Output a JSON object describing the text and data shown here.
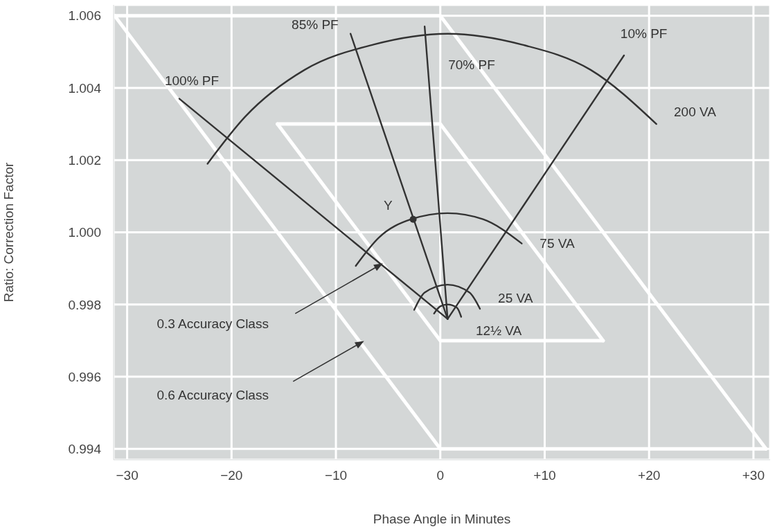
{
  "chart_data": {
    "type": "line",
    "xlabel": "Phase Angle in Minutes",
    "ylabel": "Ratio: Correction Factor",
    "xlim": [
      -31.3,
      31.6
    ],
    "ylim": [
      0.9937,
      1.0063
    ],
    "xticks": [
      {
        "value": -30,
        "label": "−30"
      },
      {
        "value": -20,
        "label": "−20"
      },
      {
        "value": -10,
        "label": "−10"
      },
      0,
      {
        "value": 10,
        "label": "+10"
      },
      {
        "value": 20,
        "label": "+20"
      },
      {
        "value": 30,
        "label": "+30"
      }
    ],
    "yticks": [
      0.994,
      0.996,
      0.998,
      {
        "value": 1,
        "label": "1.000"
      },
      1.002,
      1.004,
      1.006
    ],
    "grid": true,
    "series": [
      {
        "color": "#ffffff",
        "x": [
          -31.2,
          0,
          31.2
        ],
        "values": [
          1.006,
          1.006,
          0.994
        ]
      },
      {
        "color": "#ffffff",
        "x": [
          -31.2,
          0,
          31.2
        ],
        "values": [
          1.006,
          0.994,
          0.994
        ]
      },
      {
        "color": "#ffffff",
        "x": [
          -15.6,
          0,
          15.6
        ],
        "values": [
          1.003,
          1.003,
          0.997
        ]
      },
      {
        "color": "#ffffff",
        "x": [
          -15.6,
          0,
          15.6
        ],
        "values": [
          1.003,
          0.997,
          0.997
        ]
      },
      {
        "color": "#333333",
        "x": [
          -25,
          0.7
        ],
        "values": [
          1.0037,
          0.9976
        ]
      },
      {
        "color": "#333333",
        "x": [
          -8.6,
          0.7
        ],
        "values": [
          1.0055,
          0.9976
        ]
      },
      {
        "color": "#333333",
        "x": [
          -1.5,
          0.7
        ],
        "values": [
          1.0057,
          0.9976
        ]
      },
      {
        "color": "#333333",
        "x": [
          17.6,
          0.7
        ],
        "values": [
          1.0049,
          0.9976
        ]
      },
      {
        "color": "#333333",
        "x": [
          -22.3,
          -18.7,
          -13.0,
          -6.4,
          0.7,
          7.8,
          14.4,
          20.7
        ],
        "values": [
          1.0019,
          1.0032,
          1.0045,
          1.0052,
          1.0055,
          1.0052,
          1.0045,
          1.003
        ]
      },
      {
        "color": "#333333",
        "x": [
          -8.1,
          -5.9,
          -2.8,
          0.7,
          4.1,
          7.8
        ],
        "values": [
          0.99907,
          0.99985,
          1.00036,
          1.00053,
          1.00036,
          0.99969
        ]
      },
      {
        "color": "#333333",
        "x": [
          -2.5,
          -1.5,
          0.7,
          2.8,
          3.8
        ],
        "values": [
          0.99785,
          0.99833,
          0.99855,
          0.99833,
          0.99788
        ]
      },
      {
        "color": "#333333",
        "x": [
          -0.6,
          0.0,
          0.7,
          1.6,
          2.0
        ],
        "values": [
          0.99775,
          0.99795,
          0.998,
          0.99791,
          0.99766
        ]
      },
      {
        "type": "scatter",
        "color": "#333333",
        "x": [
          -2.6
        ],
        "values": [
          1.00036
        ]
      }
    ],
    "annotations": [
      "100% PF",
      "85% PF",
      "70% PF",
      "10% PF",
      "200 VA",
      "75 VA",
      "25 VA",
      "12½ VA",
      "Y",
      "0.3 Accuracy Class",
      "0.6 Accuracy Class"
    ]
  }
}
